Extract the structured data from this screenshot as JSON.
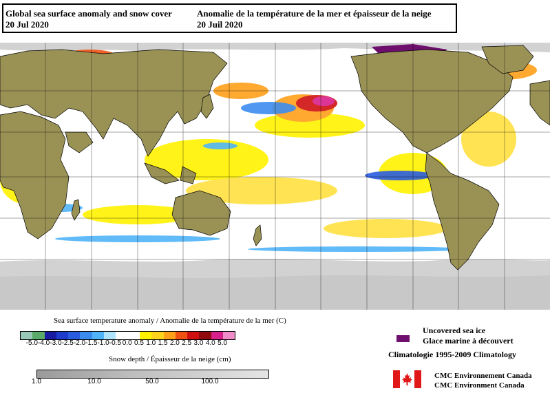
{
  "title": {
    "english": "Global sea surface anomaly and snow cover",
    "english_date": "20 Jul 2020",
    "french": "Anomalie de la température de la mer et épaisseur de la neige",
    "french_date": "20 Juil 2020"
  },
  "sst_legend": {
    "title": "Sea surface temperature anomaly / Anomalie de la température de la mer (C)",
    "ticks": [
      "-5.0",
      "-4.0",
      "-3.0",
      "-2.5",
      "-2.0",
      "-1.5",
      "-1.0",
      "-0.5",
      "0.0",
      "0.5",
      "1.0",
      "1.5",
      "2.0",
      "2.5",
      "3.0",
      "4.0",
      "5.0"
    ],
    "colors": [
      "#9ac8b8",
      "#5aaa6a",
      "#1a1aa0",
      "#1e3ccc",
      "#2a5ce0",
      "#3c8cf0",
      "#50b4f8",
      "#b0e4fa",
      "#ffffff",
      "#ffffff",
      "#fff200",
      "#ffd21e",
      "#ffa01a",
      "#f05010",
      "#d01010",
      "#900a10",
      "#d8208c",
      "#f08cc8"
    ]
  },
  "snow_legend": {
    "title": "Snow depth / Épaisseur de la neige (cm)",
    "ticks": [
      "1.0",
      "10.0",
      "50.0",
      "100.0"
    ]
  },
  "ice_legend": {
    "line1": "Uncovered sea ice",
    "line2": "Glace marine à découvert",
    "line3": "Climatologie 1995-2009 Climatology",
    "color": "#6e0f6e"
  },
  "credit": {
    "line1": "CMC Environnement Canada",
    "line2": "CMC Environment Canada"
  },
  "colors": {
    "land": "#9a9255",
    "sea_ice_snow": "#d2d2d2",
    "warm": "#ffd21e",
    "cool": "#3c8cf0"
  }
}
